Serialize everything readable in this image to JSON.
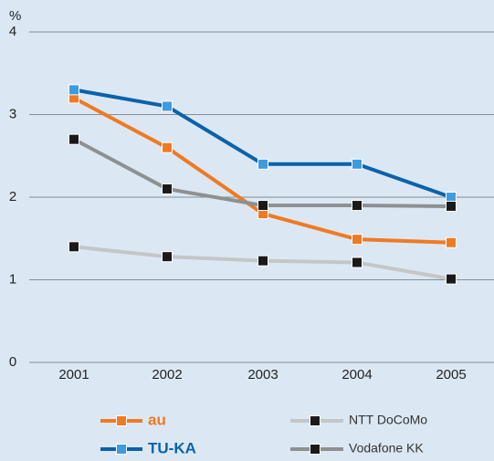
{
  "chart_data": {
    "type": "line",
    "ylabel": "%",
    "categories": [
      "2001",
      "2002",
      "2003",
      "2004",
      "2005"
    ],
    "ylim": [
      0,
      4
    ],
    "yticks": [
      0,
      1,
      2,
      3,
      4
    ],
    "grid": true,
    "series": [
      {
        "name": "au",
        "color": "#f07a22",
        "marker_color": "#f07a22",
        "values": [
          3.2,
          2.6,
          1.8,
          1.49,
          1.45
        ]
      },
      {
        "name": "NTT DoCoMo",
        "color": "#c4c6c8",
        "marker_color": "#1a1a1a",
        "values": [
          1.4,
          1.28,
          1.23,
          1.21,
          1.01
        ]
      },
      {
        "name": "TU-KA",
        "color": "#0a62aa",
        "marker_color": "#3d9be0",
        "values": [
          3.3,
          3.1,
          2.4,
          2.4,
          2.0
        ]
      },
      {
        "name": "Vodafone KK",
        "color": "#8e9091",
        "marker_color": "#1a1a1a",
        "values": [
          2.7,
          2.1,
          1.9,
          1.9,
          1.89
        ]
      }
    ]
  }
}
